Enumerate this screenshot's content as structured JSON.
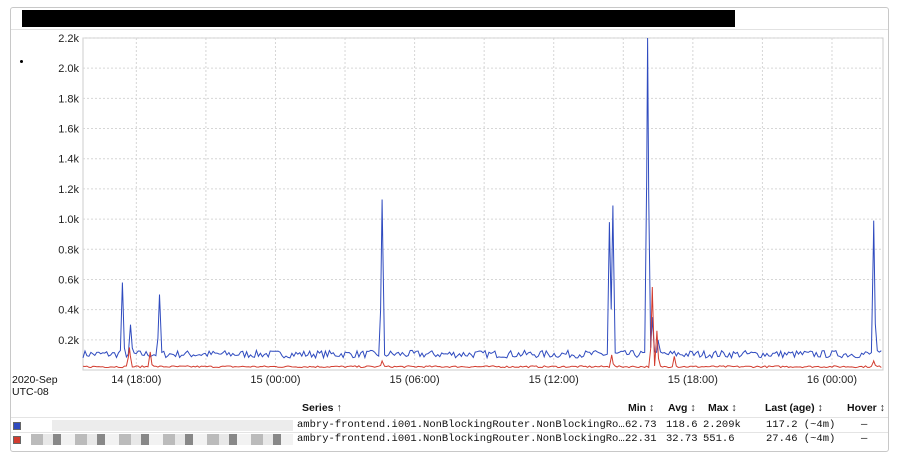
{
  "chart_data": {
    "type": "line",
    "y_ticks": [
      "0.2k",
      "0.4k",
      "0.6k",
      "0.8k",
      "1.0k",
      "1.2k",
      "1.4k",
      "1.6k",
      "1.8k",
      "2.0k",
      "2.2k"
    ],
    "x_ticks": [
      "14 (18:00)",
      "15 (00:00)",
      "15 (06:00)",
      "15 (12:00)",
      "15 (18:00)",
      "16 (00:00)"
    ],
    "x_tick_hours": [
      18,
      24,
      30,
      36,
      42,
      48
    ],
    "x_range_hours": [
      15.7,
      50.2
    ],
    "ylim": [
      0,
      2200
    ],
    "grid": true,
    "date_label": "2020-Sep",
    "timezone_label": "UTC-08",
    "series": [
      {
        "color": "#2f4bbf",
        "baseline": 105,
        "noise": 25,
        "spikes": [
          [
            17.4,
            580
          ],
          [
            17.75,
            300
          ],
          [
            19.0,
            500
          ],
          [
            28.6,
            1130
          ],
          [
            38.4,
            980
          ],
          [
            38.55,
            1090
          ],
          [
            40.05,
            2200
          ],
          [
            40.25,
            350
          ],
          [
            40.5,
            200
          ],
          [
            49.8,
            990
          ]
        ]
      },
      {
        "color": "#d23c2f",
        "baseline": 22,
        "noise": 6,
        "spikes": [
          [
            17.7,
            150
          ],
          [
            18.6,
            120
          ],
          [
            28.6,
            60
          ],
          [
            38.5,
            100
          ],
          [
            40.25,
            550
          ],
          [
            40.45,
            260
          ],
          [
            41.2,
            90
          ],
          [
            49.8,
            60
          ]
        ]
      }
    ]
  },
  "legend": {
    "headers": {
      "series": "Series ↑",
      "min": "Min ↕",
      "avg": "Avg ↕",
      "max": "Max ↕",
      "last": "Last (age) ↕",
      "hover": "Hover ↕"
    },
    "rows": [
      {
        "swatch_color": "#2f4bbf",
        "name": "ambry-frontend.i001.NonBlockingRouter.NonBlockingRo…",
        "min": "62.73",
        "avg": "118.6",
        "max": "2.209k",
        "last": "117.2 (~4m)",
        "hover": "—"
      },
      {
        "swatch_color": "#d23c2f",
        "name": "ambry-frontend.i001.NonBlockingRouter.NonBlockingRo…",
        "min": "22.31",
        "avg": "32.73",
        "max": "551.6",
        "last": "27.46 (~4m)",
        "hover": "—"
      }
    ]
  }
}
